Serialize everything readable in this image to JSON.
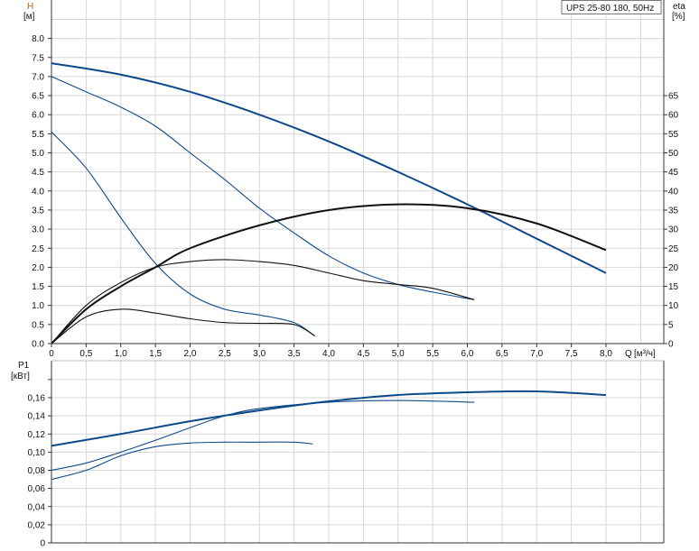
{
  "legend_label": "UPS 25-80 180, 50Hz",
  "colors": {
    "head": "#0d4a8a",
    "efficiency": "#111111",
    "power": "#0d4a8a",
    "grid": "#d6d6d6"
  },
  "chart_data": [
    {
      "type": "line",
      "title": "",
      "ylabel": "H",
      "yunit": "[м]",
      "y2label": "eta",
      "y2unit": "[%]",
      "xlabel": "Q",
      "xunit": "[м³/ч]",
      "xlim": [
        0,
        8.8
      ],
      "ylim": [
        0,
        8.9
      ],
      "y2lim": [
        0,
        89
      ],
      "grid": true,
      "xticks": [
        "0",
        "0,5",
        "1,0",
        "1,5",
        "2,0",
        "2,5",
        "3,0",
        "3,5",
        "4,0",
        "4,5",
        "5,0",
        "5,5",
        "6,0",
        "6,5",
        "7,0",
        "7,5",
        "8,0"
      ],
      "yticks": [
        "0.0",
        "0.5",
        "1.0",
        "1.5",
        "2.0",
        "2.5",
        "3.0",
        "3.5",
        "4.0",
        "4.5",
        "5.0",
        "5.5",
        "6.0",
        "6.5",
        "7.0",
        "7.5",
        "8.0"
      ],
      "y2ticks": [
        "0",
        "5",
        "10",
        "15",
        "20",
        "25",
        "30",
        "35",
        "40",
        "45",
        "50",
        "55",
        "60",
        "65"
      ],
      "head_series": [
        {
          "x": [
            0,
            1,
            2,
            3,
            4,
            5,
            6,
            7,
            8
          ],
          "y": [
            7.35,
            7.05,
            6.6,
            6.0,
            5.3,
            4.5,
            3.65,
            2.75,
            1.85
          ],
          "bold": true
        },
        {
          "x": [
            0,
            0.5,
            1,
            1.5,
            2,
            2.5,
            3,
            3.5,
            4,
            4.5,
            5,
            5.5,
            6.1
          ],
          "y": [
            7.0,
            6.6,
            6.2,
            5.7,
            5.0,
            4.3,
            3.55,
            2.9,
            2.3,
            1.85,
            1.55,
            1.35,
            1.15
          ]
        },
        {
          "x": [
            0,
            0.5,
            1,
            1.5,
            2,
            2.5,
            3,
            3.5,
            3.8
          ],
          "y": [
            5.55,
            4.6,
            3.3,
            2.1,
            1.3,
            0.9,
            0.75,
            0.55,
            0.2
          ]
        }
      ],
      "efficiency_series": [
        {
          "x": [
            0,
            0.5,
            1,
            1.5,
            2,
            3,
            4,
            5,
            6,
            7,
            8
          ],
          "y": [
            0,
            9,
            15,
            20,
            25,
            31,
            35,
            36.5,
            35.5,
            31.5,
            24.5
          ],
          "bold": true
        },
        {
          "x": [
            0,
            0.5,
            1,
            1.5,
            2,
            2.5,
            3,
            3.5,
            4,
            4.5,
            5,
            5.5,
            6.1
          ],
          "y": [
            0,
            10,
            16,
            20,
            21.5,
            22,
            21.5,
            20.5,
            18.5,
            16.5,
            15.5,
            14.5,
            11.5
          ]
        },
        {
          "x": [
            0,
            0.5,
            1,
            1.5,
            2,
            2.5,
            3,
            3.5,
            3.8
          ],
          "y": [
            0,
            7,
            9,
            8,
            6.5,
            5.5,
            5.3,
            5,
            2
          ]
        }
      ]
    },
    {
      "type": "line",
      "title": "",
      "ylabel": "P1",
      "yunit": "[кВт]",
      "xlim": [
        0,
        8.8
      ],
      "ylim": [
        0,
        0.2
      ],
      "grid": true,
      "yticks": [
        "0",
        "0,02",
        "0,04",
        "0,06",
        "0,08",
        "0,10",
        "0,12",
        "0,14",
        "0,16"
      ],
      "power_series": [
        {
          "x": [
            0,
            1,
            2,
            3,
            4,
            5,
            6,
            7,
            8
          ],
          "y": [
            0.107,
            0.12,
            0.134,
            0.146,
            0.156,
            0.163,
            0.166,
            0.167,
            0.163
          ],
          "bold": true
        },
        {
          "x": [
            0,
            0.5,
            1,
            1.5,
            2,
            2.5,
            3,
            4,
            5,
            6.1
          ],
          "y": [
            0.08,
            0.088,
            0.1,
            0.113,
            0.127,
            0.14,
            0.148,
            0.155,
            0.157,
            0.155
          ]
        },
        {
          "x": [
            0,
            0.5,
            1,
            1.5,
            2,
            2.5,
            3,
            3.5,
            3.77
          ],
          "y": [
            0.07,
            0.08,
            0.096,
            0.106,
            0.11,
            0.111,
            0.111,
            0.111,
            0.109
          ]
        }
      ]
    }
  ]
}
